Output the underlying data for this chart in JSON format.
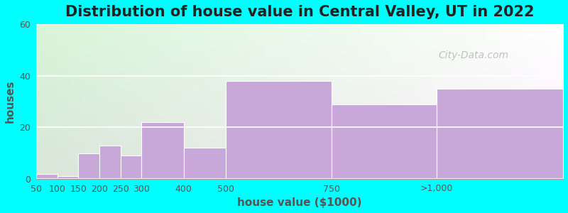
{
  "title": "Distribution of house value in Central Valley, UT in 2022",
  "xlabel": "house value ($1000)",
  "ylabel": "houses",
  "bar_values": [
    2,
    1,
    10,
    13,
    9,
    22,
    12,
    38,
    29,
    35
  ],
  "bar_lefts": [
    50,
    100,
    150,
    200,
    250,
    300,
    400,
    500,
    750,
    1000
  ],
  "bar_widths": [
    50,
    50,
    50,
    50,
    50,
    100,
    100,
    250,
    250,
    300
  ],
  "bar_color": "#c8a8d8",
  "background_color": "#00ffff",
  "ylim": [
    0,
    60
  ],
  "yticks": [
    0,
    20,
    40,
    60
  ],
  "xlim": [
    50,
    1300
  ],
  "xtick_positions": [
    50,
    100,
    150,
    200,
    250,
    300,
    400,
    500,
    750,
    1000
  ],
  "xtick_labels": [
    "50",
    "100",
    "150",
    "200",
    "250",
    "300",
    "400",
    "500",
    "750",
    ">1,000"
  ],
  "title_fontsize": 15,
  "axis_label_fontsize": 11,
  "tick_fontsize": 9,
  "watermark_text": "City-Data.com",
  "bg_color_left": "#c8ecc8",
  "bg_color_right": "#f0f8f0",
  "bg_color_top": "#f0f8ff",
  "bg_color_bottom": "#d8f0d0"
}
